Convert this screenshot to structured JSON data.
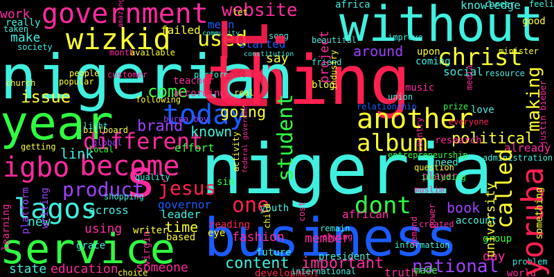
{
  "words": {
    "nigerian": "nigerian",
    "nigeria": "nigeria",
    "business": "business",
    "without": "without",
    "thing": "thing",
    "year": "year",
    "service": "service",
    "government": "government",
    "website": "website",
    "wizkid": "wizkid",
    "used": "used",
    "today": "today",
    "another": "another",
    "different": "different",
    "become": "become",
    "album": "album",
    "political": "political",
    "yoruba": "yoruba",
    "called": "called",
    "lagos": "lagos",
    "igbo": "igbo",
    "product": "product",
    "jesus": "jesus",
    "dont": "dont",
    "one": "one",
    "s": "s",
    "christ": "christ",
    "making": "making",
    "around": "around",
    "student": "student",
    "going": "going",
    "known": "known",
    "brand": "brand",
    "come": "come",
    "issue": "issue",
    "content": "content",
    "important": "important",
    "national": "national",
    "book": "book",
    "time": "time",
    "member": "member",
    "fashion": "fashion",
    "make": "make",
    "work": "work",
    "link": "link",
    "new": "new",
    "using": "using",
    "education": "education",
    "someone": "someone",
    "state": "state",
    "governor": "governor",
    "leader": "leader",
    "already": "already",
    "day": "day",
    "university": "university",
    "something": "something",
    "knowledge": "knowledge",
    "group": "group",
    "project": "project",
    "say": "say",
    "effort": "effort",
    "blog": "blog",
    "mean": "mean",
    "started": "started",
    "failed": "failed",
    "social": "social",
    "upon": "upon",
    "music": "music",
    "learning": "learning",
    "platform": "platform",
    "writing": "writing",
    "grace": "grace",
    "writer": "writer",
    "based": "based",
    "truth": "truth",
    "made": "made",
    "world": "world",
    "really": "really",
    "society": "society",
    "church": "church",
    "people": "people",
    "teacher": "teacher",
    "according": "according",
    "following": "following",
    "local": "local",
    "global": "global",
    "nd": "nd",
    "love": "love",
    "player": "player",
    "question": "question",
    "african": "african",
    "president": "president",
    "account": "account",
    "future": "future",
    "reading": "reading",
    "development": "development",
    "information": "information",
    "entrepreneurship": "entrepreneurship",
    "including": "including",
    "relationship": "relationship",
    "research": "research",
    "career": "career",
    "africa": "africa",
    "feeling": "feeling",
    "customer": "customer",
    "community": "community",
    "amazing": "amazing",
    "taken": "taken",
    "constitution": "constitution",
    "burna boy": "burna boy",
    "justin bieber": "justin bieber",
    "minister": "minister",
    "eye": "eye",
    "sin": "sin",
    "let": "let",
    "part": "part",
    "even": "even",
    "life": "life",
    "also": "also",
    "found": "found",
    "good": "good",
    "need": "need",
    "real": "real",
    "song": "song",
    "youth": "youth",
    "friend": "friend",
    "quality": "quality",
    "across": "across",
    "coming": "coming",
    "federal government": "federal government",
    "administration": "administration",
    "resource": "resource",
    "media": "media",
    "prize": "prize",
    "everyone": "everyone",
    "improve": "improve",
    "union": "union",
    "muslim": "muslim",
    "demand": "demand",
    "created": "created",
    "problem": "problem",
    "choice": "choice",
    "virgin": "virgin",
    "billboard": "billboard",
    "getting": "getting",
    "country": "country",
    "performance": "performance",
    "popular": "popular",
    "business2": "business",
    "child": "child",
    "power": "power",
    "shopping": "shopping",
    "remain": "remain",
    "cost": "cost",
    "month": "month",
    "available": "available",
    "beautiful": "beautiful",
    "activity": "activity",
    "industry": "industry",
    "saying": "saying",
    "international": "international",
    "light": "light",
    "ig": "ig"
  }
}
